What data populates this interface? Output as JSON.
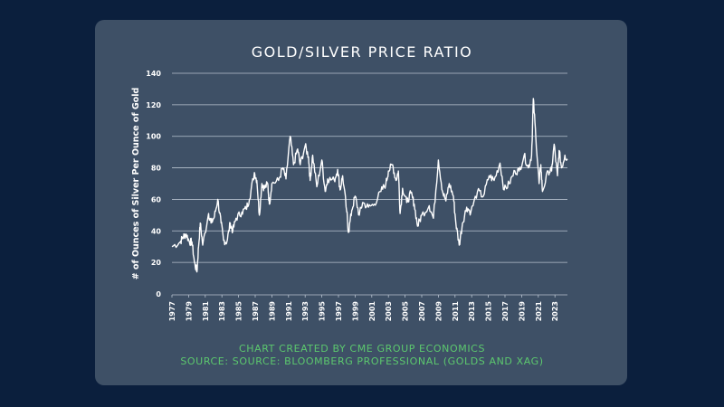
{
  "chart_data": {
    "type": "line",
    "title": "GOLD/SILVER PRICE RATIO",
    "ylabel": "# of Ounces of Silver Per Ounce of Gold",
    "xlabel": "",
    "ylim": [
      0,
      140
    ],
    "xlim": [
      1977,
      2024.5
    ],
    "yticks": [
      0,
      20,
      40,
      60,
      80,
      100,
      120,
      140
    ],
    "xticks": [
      "1977",
      "1979",
      "1981",
      "1983",
      "1985",
      "1987",
      "1989",
      "1991",
      "1993",
      "1995",
      "1997",
      "1999",
      "2001",
      "2003",
      "2005",
      "2007",
      "2009",
      "2011",
      "2013",
      "2015",
      "2017",
      "2019",
      "2021",
      "2023"
    ],
    "grid": "horizontal",
    "line_color": "#ffffff",
    "x": [
      1977.0,
      1978.0,
      1978.3,
      1978.7,
      1979.1,
      1979.4,
      1979.7,
      1980.0,
      1980.2,
      1980.4,
      1980.7,
      1981.4,
      1981.7,
      1982.1,
      1982.5,
      1982.9,
      1983.2,
      1983.6,
      1984.0,
      1984.3,
      1984.7,
      1985.4,
      1985.9,
      1986.3,
      1986.9,
      1987.2,
      1987.5,
      1987.8,
      1988.1,
      1988.5,
      1988.7,
      1989.0,
      1989.8,
      1990.3,
      1990.7,
      1991.2,
      1991.6,
      1992.1,
      1992.4,
      1993.0,
      1993.4,
      1993.6,
      1993.9,
      1994.4,
      1995.0,
      1995.4,
      1995.7,
      1996.5,
      1996.9,
      1997.2,
      1997.5,
      1998.0,
      1998.2,
      1998.6,
      1999.0,
      1999.5,
      1999.9,
      2000.6,
      2001.3,
      2002.1,
      2002.7,
      2003.0,
      2003.5,
      2003.9,
      2004.2,
      2004.4,
      2004.7,
      2005.2,
      2005.7,
      2006.1,
      2006.5,
      2007.0,
      2007.9,
      2008.4,
      2009.0,
      2009.5,
      2009.9,
      2010.3,
      2010.8,
      2011.1,
      2011.5,
      2011.9,
      2012.4,
      2012.9,
      2013.7,
      2014.4,
      2015.1,
      2015.7,
      2016.4,
      2016.9,
      2017.5,
      2018.2,
      2018.7,
      2019.3,
      2019.8,
      2020.2,
      2020.4,
      2020.7,
      2021.1,
      2021.3,
      2021.5,
      2022.2,
      2022.6,
      2022.9,
      2023.3,
      2023.5,
      2023.8,
      2024.2,
      2024.5
    ],
    "y": [
      30,
      33,
      36,
      38,
      33,
      33,
      20,
      14,
      30,
      45,
      31,
      51,
      45,
      49,
      60,
      45,
      34,
      33,
      45,
      40,
      48,
      52,
      54,
      60,
      77,
      72,
      50,
      70,
      67,
      70,
      57,
      70,
      72,
      80,
      73,
      100,
      82,
      92,
      82,
      94,
      87,
      72,
      88,
      68,
      85,
      65,
      73,
      72,
      79,
      66,
      75,
      52,
      39,
      53,
      62,
      50,
      58,
      55,
      57,
      65,
      70,
      78,
      82,
      72,
      78,
      51,
      67,
      58,
      64,
      57,
      43,
      50,
      56,
      48,
      85,
      65,
      59,
      70,
      62,
      45,
      31,
      45,
      55,
      52,
      65,
      62,
      75,
      72,
      83,
      66,
      70,
      78,
      78,
      88,
      80,
      88,
      124,
      100,
      70,
      82,
      65,
      78,
      78,
      95,
      75,
      91,
      80,
      88,
      85
    ]
  },
  "footer": {
    "line1": "CHART CREATED BY CME GROUP ECONOMICS",
    "line2": "SOURCE: SOURCE: BLOOMBERG PROFESSIONAL (GOLDS AND XAG)"
  }
}
